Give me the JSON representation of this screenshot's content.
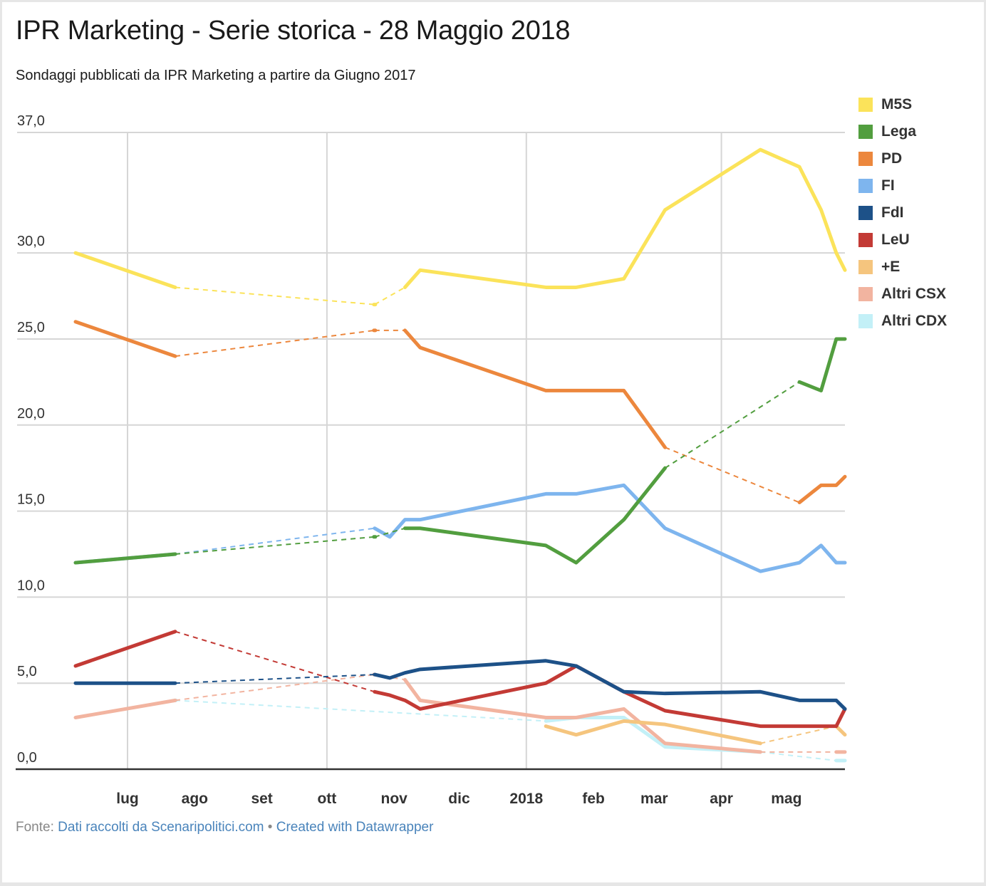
{
  "header": {
    "title": "IPR Marketing - Serie storica - 28 Maggio 2018",
    "subtitle": "Sondaggi pubblicati da IPR Marketing a partire da Giugno 2017"
  },
  "footer": {
    "source_prefix": "Fonte:",
    "source_link": "Dati raccolti da Scenaripolitici.com",
    "separator": "•",
    "credit_link": "Created with Datawrapper"
  },
  "chart_data": {
    "type": "line",
    "title": "IPR Marketing - Serie storica - 28 Maggio 2018",
    "subtitle": "Sondaggi pubblicati da IPR Marketing a partire da Giugno 2017",
    "xlabel": "",
    "ylabel": "",
    "ylim": [
      0,
      37
    ],
    "xlim": [
      "2017-06-07",
      "2018-05-28"
    ],
    "grid": true,
    "legend_position": "right",
    "y_ticks": [
      {
        "value": 0,
        "label": "0,0"
      },
      {
        "value": 5,
        "label": "5,0"
      },
      {
        "value": 10,
        "label": "10,0"
      },
      {
        "value": 15,
        "label": "15,0"
      },
      {
        "value": 20,
        "label": "20,0"
      },
      {
        "value": 25,
        "label": "25,0"
      },
      {
        "value": 30,
        "label": "30,0"
      },
      {
        "value": 37,
        "label": "37,0"
      }
    ],
    "x_ticks": [
      {
        "date": "2017-07-01",
        "label": "lug"
      },
      {
        "date": "2017-08-01",
        "label": "ago"
      },
      {
        "date": "2017-09-01",
        "label": "set"
      },
      {
        "date": "2017-10-01",
        "label": "ott"
      },
      {
        "date": "2017-11-01",
        "label": "nov"
      },
      {
        "date": "2017-12-01",
        "label": "dic"
      },
      {
        "date": "2018-01-01",
        "label": "2018"
      },
      {
        "date": "2018-02-01",
        "label": "feb"
      },
      {
        "date": "2018-03-01",
        "label": "mar"
      },
      {
        "date": "2018-04-01",
        "label": "apr"
      },
      {
        "date": "2018-05-01",
        "label": "mag"
      }
    ],
    "x_gridlines": [
      "2017-07-01",
      "2017-10-01",
      "2018-01-01",
      "2018-04-01"
    ],
    "x": [
      "2017-06-07",
      "2017-07-23",
      "2017-10-16",
      "2017-10-23",
      "2017-10-30",
      "2017-11-06",
      "2017-11-13",
      "2018-01-10",
      "2018-01-24",
      "2018-02-15",
      "2018-03-06",
      "2018-04-19",
      "2018-05-07",
      "2018-05-17",
      "2018-05-24",
      "2018-05-28"
    ],
    "series": [
      {
        "name": "M5S",
        "color": "#fbe35a",
        "values": [
          30.0,
          28.0,
          null,
          27.0,
          null,
          28.0,
          29.0,
          28.0,
          28.0,
          28.5,
          32.5,
          36.0,
          35.0,
          32.5,
          30.0,
          29.0
        ]
      },
      {
        "name": "Lega",
        "color": "#529e3f",
        "values": [
          12.0,
          12.5,
          null,
          13.5,
          null,
          14.0,
          14.0,
          13.0,
          12.0,
          14.5,
          17.5,
          null,
          22.5,
          22.0,
          25.0,
          25.0
        ]
      },
      {
        "name": "PD",
        "color": "#ec873d",
        "values": [
          26.0,
          24.0,
          null,
          25.5,
          null,
          25.5,
          24.5,
          22.0,
          22.0,
          22.0,
          18.7,
          null,
          15.5,
          16.5,
          16.5,
          17.0
        ]
      },
      {
        "name": "FI",
        "color": "#7eb5ee",
        "values": [
          12.0,
          12.5,
          null,
          14.0,
          13.5,
          14.5,
          14.5,
          16.0,
          16.0,
          16.5,
          14.0,
          11.5,
          12.0,
          13.0,
          12.0,
          12.0
        ]
      },
      {
        "name": "FdI",
        "color": "#1d5188",
        "values": [
          5.0,
          5.0,
          null,
          5.5,
          5.3,
          5.6,
          5.8,
          6.3,
          6.0,
          4.5,
          4.4,
          4.5,
          4.0,
          4.0,
          4.0,
          3.5
        ]
      },
      {
        "name": "LeU",
        "color": "#c33a35",
        "values": [
          6.0,
          8.0,
          null,
          4.5,
          4.3,
          4.0,
          3.5,
          5.0,
          6.0,
          4.5,
          3.4,
          2.5,
          2.5,
          2.5,
          2.5,
          3.5
        ]
      },
      {
        "name": "+E",
        "color": "#f5c57e",
        "values": [
          null,
          null,
          null,
          null,
          null,
          null,
          null,
          2.5,
          2.0,
          2.8,
          2.6,
          1.5,
          null,
          null,
          2.5,
          2.0
        ]
      },
      {
        "name": "Altri CSX",
        "color": "#f2b4a0",
        "values": [
          3.0,
          4.0,
          null,
          5.5,
          null,
          5.2,
          4.0,
          3.0,
          3.0,
          3.5,
          1.5,
          1.0,
          null,
          null,
          1.0,
          1.0
        ]
      },
      {
        "name": "Altri CDX",
        "color": "#c3f0f7",
        "values": [
          null,
          4.0,
          null,
          null,
          null,
          null,
          null,
          2.8,
          3.0,
          3.0,
          1.3,
          1.0,
          null,
          null,
          0.5,
          0.5
        ]
      }
    ]
  }
}
